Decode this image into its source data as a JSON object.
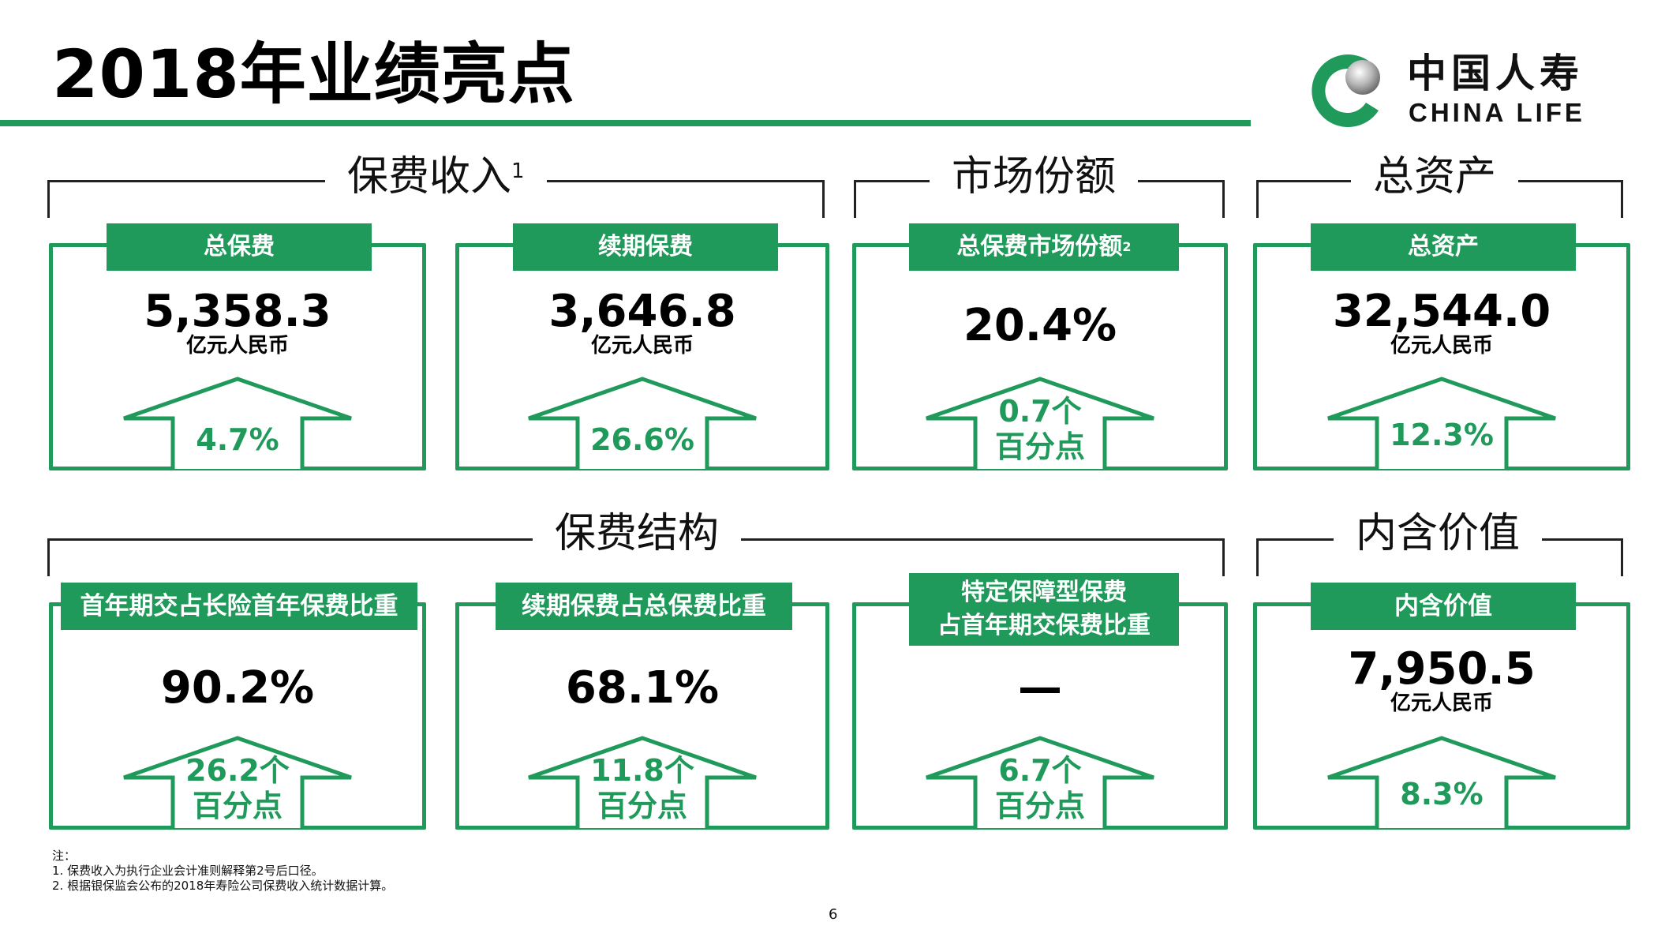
{
  "title": "2018年业绩亮点",
  "logo": {
    "cn": "中国人寿",
    "en": "CHINA LIFE"
  },
  "groups": {
    "premium_income": {
      "label": "保费收入",
      "sup": "1"
    },
    "market_share": {
      "label": "市场份额"
    },
    "total_assets": {
      "label": "总资产"
    },
    "premium_structure": {
      "label": "保费结构"
    },
    "embedded_value": {
      "label": "内含价值"
    }
  },
  "cards": {
    "total_premium": {
      "label": "总保费",
      "value": "5,358.3",
      "unit": "亿元人民币",
      "growth": "4.7%"
    },
    "renewal_premium": {
      "label": "续期保费",
      "value": "3,646.8",
      "unit": "亿元人民币",
      "growth": "26.6%"
    },
    "market_share": {
      "label": "总保费市场份额",
      "sup": "2",
      "value": "20.4%",
      "growth_line1": "0.7个",
      "growth_line2": "百分点"
    },
    "total_assets": {
      "label": "总资产",
      "value": "32,544.0",
      "unit": "亿元人民币",
      "growth": "12.3%"
    },
    "first_year_ratio": {
      "label": "首年期交占长险首年保费比重",
      "value": "90.2%",
      "growth_line1": "26.2个",
      "growth_line2": "百分点"
    },
    "renewal_ratio": {
      "label": "续期保费占总保费比重",
      "value": "68.1%",
      "growth_line1": "11.8个",
      "growth_line2": "百分点"
    },
    "protection_ratio": {
      "label_line1": "特定保障型保费",
      "label_line2": "占首年期交保费比重",
      "value": "—",
      "growth_line1": "6.7个",
      "growth_line2": "百分点"
    },
    "embedded_value": {
      "label": "内含价值",
      "value": "7,950.5",
      "unit": "亿元人民币",
      "growth": "8.3%"
    }
  },
  "notes": {
    "heading": "注：",
    "line1": "1. 保费收入为执行企业会计准则解释第2号后口径。",
    "line2": "2. 根据银保监会公布的2018年寿险公司保费收入统计数据计算。"
  },
  "page_number": "6",
  "colors": {
    "brand_green": "#1f9a5b"
  }
}
